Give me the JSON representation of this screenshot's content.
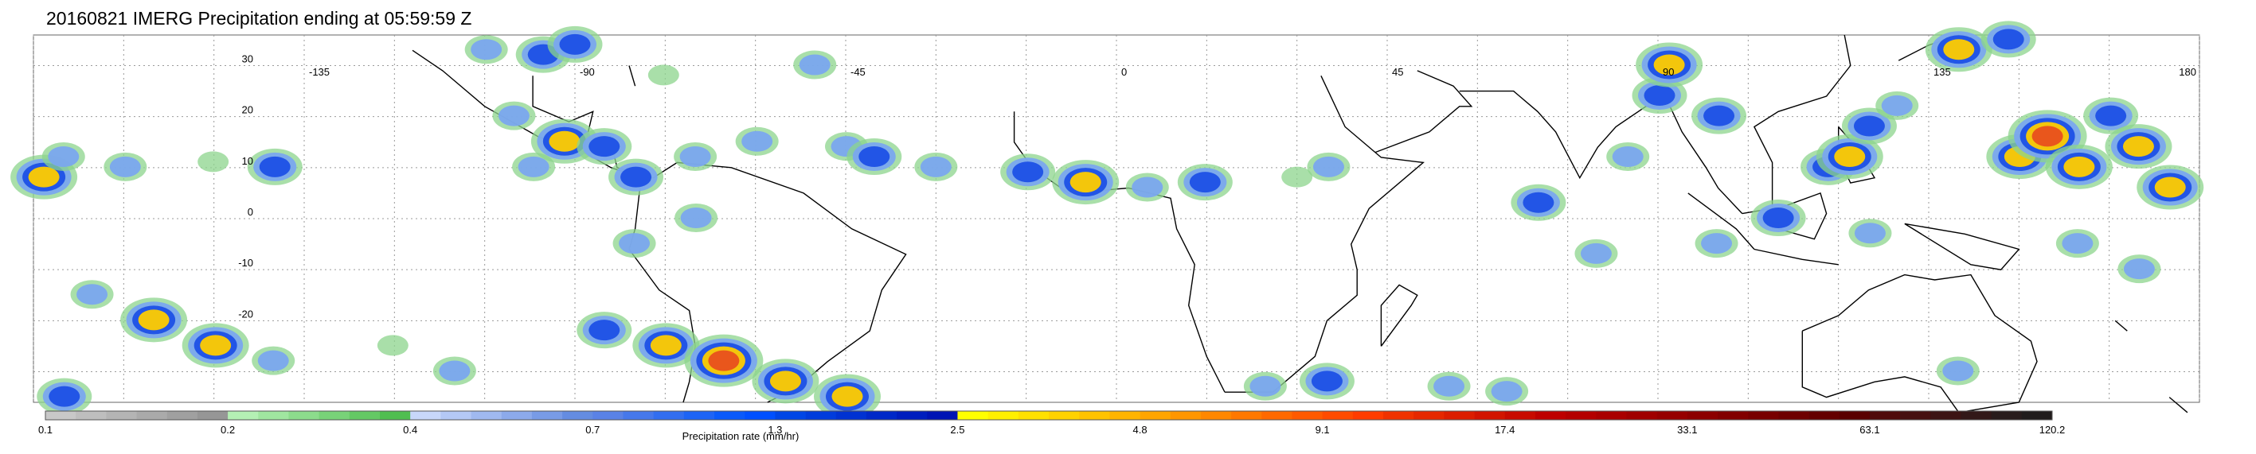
{
  "title": "20160821 IMERG Precipitation ending at 05:59:59 Z",
  "map": {
    "lon_range": [
      -180,
      180
    ],
    "lat_range": [
      -36,
      36
    ],
    "grid": true,
    "lon_ticks": [
      {
        "value": -135,
        "label": "-135"
      },
      {
        "value": -90,
        "label": "-90"
      },
      {
        "value": -45,
        "label": "-45"
      },
      {
        "value": 0,
        "label": "0"
      },
      {
        "value": 45,
        "label": "45"
      },
      {
        "value": 90,
        "label": "90"
      },
      {
        "value": 135,
        "label": "135"
      },
      {
        "value": 180,
        "label": "180"
      }
    ],
    "lat_ticks": [
      {
        "value": 30,
        "label": "30"
      },
      {
        "value": 20,
        "label": "20"
      },
      {
        "value": 10,
        "label": "10"
      },
      {
        "value": 0,
        "label": "0"
      },
      {
        "value": -10,
        "label": "-10"
      },
      {
        "value": -20,
        "label": "-20"
      }
    ],
    "precip_cells": [
      {
        "lon": -178,
        "lat": 8,
        "level": 4
      },
      {
        "lon": -175,
        "lat": 12,
        "level": 2
      },
      {
        "lon": -165,
        "lat": 10,
        "level": 2
      },
      {
        "lon": -150,
        "lat": 11,
        "level": 1
      },
      {
        "lon": -140,
        "lat": 10,
        "level": 3
      },
      {
        "lon": -170,
        "lat": -15,
        "level": 2
      },
      {
        "lon": -160,
        "lat": -20,
        "level": 4
      },
      {
        "lon": -150,
        "lat": -25,
        "level": 4
      },
      {
        "lon": -140,
        "lat": -28,
        "level": 2
      },
      {
        "lon": -175,
        "lat": -35,
        "level": 3
      },
      {
        "lon": -120,
        "lat": -25,
        "level": 1
      },
      {
        "lon": -110,
        "lat": -30,
        "level": 2
      },
      {
        "lon": -105,
        "lat": 33,
        "level": 2
      },
      {
        "lon": -100,
        "lat": 20,
        "level": 2
      },
      {
        "lon": -97,
        "lat": 10,
        "level": 2
      },
      {
        "lon": -95,
        "lat": 32,
        "level": 3
      },
      {
        "lon": -90,
        "lat": 34,
        "level": 3
      },
      {
        "lon": -92,
        "lat": 15,
        "level": 4
      },
      {
        "lon": -85,
        "lat": 14,
        "level": 3
      },
      {
        "lon": -80,
        "lat": 8,
        "level": 3
      },
      {
        "lon": -75,
        "lat": 28,
        "level": 1
      },
      {
        "lon": -70,
        "lat": 12,
        "level": 2
      },
      {
        "lon": -60,
        "lat": 15,
        "level": 2
      },
      {
        "lon": -50,
        "lat": 30,
        "level": 2
      },
      {
        "lon": -45,
        "lat": 14,
        "level": 2
      },
      {
        "lon": -40,
        "lat": 12,
        "level": 3
      },
      {
        "lon": -30,
        "lat": 10,
        "level": 2
      },
      {
        "lon": -15,
        "lat": 9,
        "level": 3
      },
      {
        "lon": -5,
        "lat": 7,
        "level": 4
      },
      {
        "lon": 5,
        "lat": 6,
        "level": 2
      },
      {
        "lon": 15,
        "lat": 7,
        "level": 3
      },
      {
        "lon": 30,
        "lat": 8,
        "level": 1
      },
      {
        "lon": 35,
        "lat": 10,
        "level": 2
      },
      {
        "lon": -85,
        "lat": -22,
        "level": 3
      },
      {
        "lon": -75,
        "lat": -25,
        "level": 4
      },
      {
        "lon": -65,
        "lat": -28,
        "level": 5
      },
      {
        "lon": -55,
        "lat": -32,
        "level": 4
      },
      {
        "lon": -45,
        "lat": -35,
        "level": 4
      },
      {
        "lon": -80,
        "lat": -5,
        "level": 2
      },
      {
        "lon": -70,
        "lat": 0,
        "level": 2
      },
      {
        "lon": 25,
        "lat": -33,
        "level": 2
      },
      {
        "lon": 35,
        "lat": -32,
        "level": 3
      },
      {
        "lon": 55,
        "lat": -33,
        "level": 2
      },
      {
        "lon": 65,
        "lat": -34,
        "level": 2
      },
      {
        "lon": 70,
        "lat": 3,
        "level": 3
      },
      {
        "lon": 80,
        "lat": -7,
        "level": 2
      },
      {
        "lon": 85,
        "lat": 12,
        "level": 2
      },
      {
        "lon": 90,
        "lat": 24,
        "level": 3
      },
      {
        "lon": 92,
        "lat": 30,
        "level": 4
      },
      {
        "lon": 100,
        "lat": 20,
        "level": 3
      },
      {
        "lon": 100,
        "lat": -5,
        "level": 2
      },
      {
        "lon": 110,
        "lat": 0,
        "level": 3
      },
      {
        "lon": 118,
        "lat": 10,
        "level": 3
      },
      {
        "lon": 122,
        "lat": 12,
        "level": 4
      },
      {
        "lon": 125,
        "lat": 18,
        "level": 3
      },
      {
        "lon": 130,
        "lat": 22,
        "level": 2
      },
      {
        "lon": 140,
        "lat": 33,
        "level": 4
      },
      {
        "lon": 148,
        "lat": 35,
        "level": 3
      },
      {
        "lon": 140,
        "lat": -30,
        "level": 2
      },
      {
        "lon": 150,
        "lat": 12,
        "level": 4
      },
      {
        "lon": 155,
        "lat": 16,
        "level": 5
      },
      {
        "lon": 160,
        "lat": 10,
        "level": 4
      },
      {
        "lon": 165,
        "lat": 20,
        "level": 3
      },
      {
        "lon": 170,
        "lat": 14,
        "level": 4
      },
      {
        "lon": 175,
        "lat": 6,
        "level": 4
      },
      {
        "lon": 160,
        "lat": -5,
        "level": 2
      },
      {
        "lon": 170,
        "lat": -10,
        "level": 2
      },
      {
        "lon": 125,
        "lat": -3,
        "level": 2
      }
    ]
  },
  "colorbar": {
    "label": "Precipitation rate (mm/hr)",
    "tick_labels": [
      {
        "idx": 0,
        "label": "0.1"
      },
      {
        "idx": 6,
        "label": "0.2"
      },
      {
        "idx": 12,
        "label": "0.4"
      },
      {
        "idx": 18,
        "label": "0.7"
      },
      {
        "idx": 24,
        "label": "1.3"
      },
      {
        "idx": 30,
        "label": "2.5"
      },
      {
        "idx": 36,
        "label": "4.8"
      },
      {
        "idx": 42,
        "label": "9.1"
      },
      {
        "idx": 48,
        "label": "17.4"
      },
      {
        "idx": 54,
        "label": "33.1"
      },
      {
        "idx": 60,
        "label": "63.1"
      },
      {
        "idx": 66,
        "label": "120.2"
      }
    ],
    "bins": [
      "#c8c8c8",
      "#bebebe",
      "#b4b4b4",
      "#aaaaaa",
      "#a0a0a0",
      "#969696",
      "#b4f0b4",
      "#a0e6a0",
      "#8cdc8c",
      "#78d278",
      "#64c864",
      "#50be50",
      "#c8d7fa",
      "#b4c8f5",
      "#a0b9f0",
      "#8caaeb",
      "#789be6",
      "#648ce1",
      "#5a82e6",
      "#4678eb",
      "#326ef0",
      "#1e64f5",
      "#0a5afa",
      "#0050ff",
      "#0046e6",
      "#003cdc",
      "#0032d2",
      "#0028c8",
      "#001ebe",
      "#0014b4",
      "#ffff00",
      "#fff000",
      "#ffe100",
      "#ffd200",
      "#ffc300",
      "#ffb400",
      "#ffa500",
      "#ff9600",
      "#ff8700",
      "#ff7800",
      "#ff6900",
      "#ff5a00",
      "#ff4b00",
      "#ff3c00",
      "#f03200",
      "#e62800",
      "#dc1e00",
      "#d21400",
      "#c80a00",
      "#be0000",
      "#b40000",
      "#aa0000",
      "#a00000",
      "#960000",
      "#8c0000",
      "#820000",
      "#780000",
      "#6e0000",
      "#640000",
      "#5a0000",
      "#500a0a",
      "#461010",
      "#3c1414",
      "#321818",
      "#281c1c",
      "#201c1c"
    ]
  }
}
